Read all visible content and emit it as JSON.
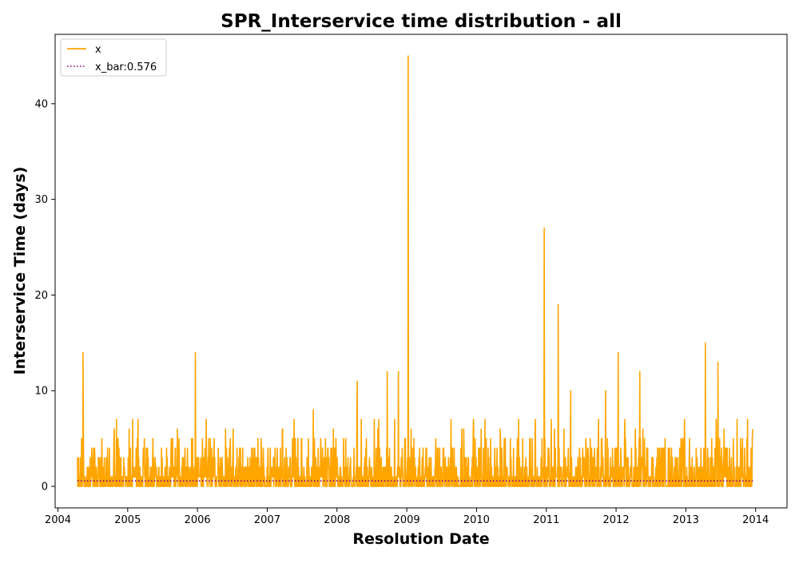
{
  "chart_data": {
    "type": "line",
    "title": "SPR_Interservice time distribution - all",
    "xlabel": "Resolution Date",
    "ylabel": "Interservice Time (days)",
    "xlim": [
      2003.96,
      2014.45
    ],
    "ylim": [
      -2.25,
      47.25
    ],
    "x_ticks": [
      "2004",
      "2005",
      "2006",
      "2007",
      "2008",
      "2009",
      "2010",
      "2011",
      "2012",
      "2013",
      "2014"
    ],
    "y_ticks": [
      "0",
      "10",
      "20",
      "30",
      "40"
    ],
    "grid": false,
    "legend_position": "upper-left",
    "series": [
      {
        "name": "x",
        "color": "#ffa500",
        "style": "solid",
        "notable_peaks": [
          {
            "x": 2004.36,
            "y": 14
          },
          {
            "x": 2005.97,
            "y": 14
          },
          {
            "x": 2007.66,
            "y": 8
          },
          {
            "x": 2008.29,
            "y": 11
          },
          {
            "x": 2008.72,
            "y": 12
          },
          {
            "x": 2008.88,
            "y": 12
          },
          {
            "x": 2009.02,
            "y": 45
          },
          {
            "x": 2010.97,
            "y": 27
          },
          {
            "x": 2011.17,
            "y": 19
          },
          {
            "x": 2011.35,
            "y": 10
          },
          {
            "x": 2011.85,
            "y": 10
          },
          {
            "x": 2012.03,
            "y": 14
          },
          {
            "x": 2012.34,
            "y": 12
          },
          {
            "x": 2013.28,
            "y": 15
          },
          {
            "x": 2013.46,
            "y": 13
          }
        ],
        "x_range": [
          2004.28,
          2013.96
        ],
        "typical_range": [
          0,
          7
        ]
      },
      {
        "name": "x_bar:0.576",
        "color": "#800080",
        "style": "dotted",
        "x": [
          2004.28,
          2013.96
        ],
        "y": [
          0.576,
          0.576
        ]
      }
    ]
  }
}
